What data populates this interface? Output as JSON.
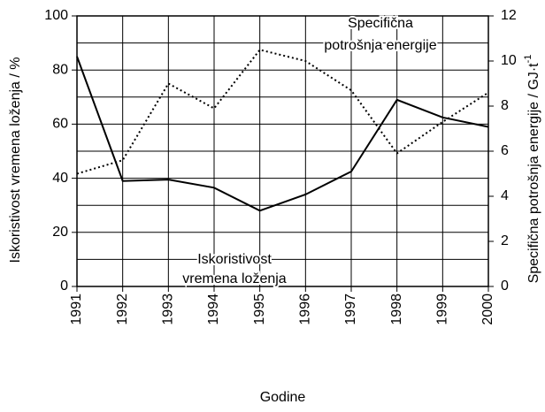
{
  "chart_data": {
    "type": "line",
    "x": [
      1991,
      1992,
      1993,
      1994,
      1995,
      1996,
      1997,
      1998,
      1999,
      2000
    ],
    "xlim": [
      1991,
      2000
    ],
    "xticks": [
      1991,
      1992,
      1993,
      1994,
      1995,
      1996,
      1997,
      1998,
      1999,
      2000
    ],
    "xlabel": "Godine",
    "ylim": [
      0,
      100
    ],
    "yticks": [
      0,
      20,
      40,
      60,
      80,
      100
    ],
    "ygrid": [
      0,
      10,
      20,
      30,
      40,
      50,
      60,
      70,
      80,
      90,
      100
    ],
    "ylabel": "Iskoristivost vremena loženja / %",
    "y2lim": [
      0,
      12
    ],
    "y2ticks": [
      0,
      2,
      4,
      6,
      8,
      10,
      12
    ],
    "y2label": "Specifična potrošnja energije / GJ·t",
    "y2label_sup": "-1",
    "grid": true,
    "series": [
      {
        "name": "Iskoristivost vremena loženja",
        "color": "#000000",
        "dash": "solid",
        "values": [
          85,
          39,
          39.5,
          36.5,
          28,
          34,
          42.5,
          69,
          62.5,
          59
        ]
      },
      {
        "name": "Specifična potrošnja energije",
        "color": "#000000",
        "dash": "dotted",
        "axis": "y2",
        "values": [
          5.0,
          5.6,
          9.0,
          7.9,
          10.5,
          10.0,
          8.7,
          5.9,
          7.3,
          8.6
        ]
      }
    ],
    "annotations": [
      {
        "lines": [
          "Specifična",
          "potrošnja energije"
        ],
        "series": 1
      },
      {
        "lines": [
          "Iskoristivost",
          "vremena loženja"
        ],
        "series": 0
      }
    ]
  }
}
